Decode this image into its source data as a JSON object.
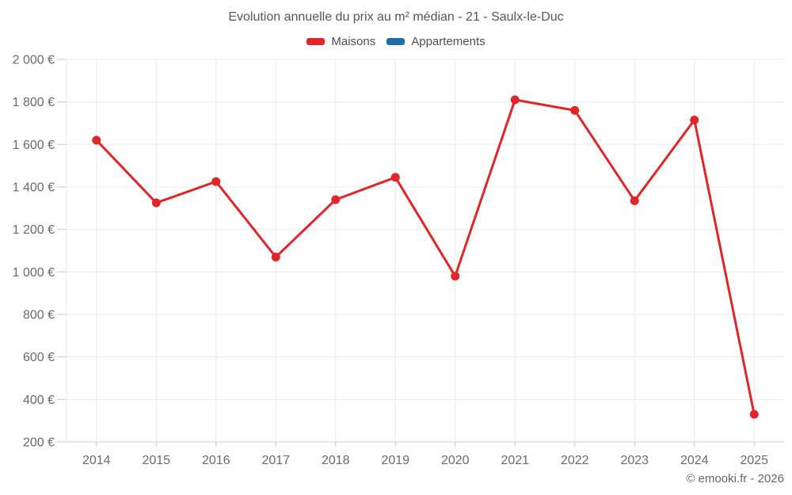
{
  "chart": {
    "title": "Evolution annuelle du prix au m² médian - 21 - Saulx-le-Duc"
  },
  "legend": {
    "items": [
      {
        "label": "Maisons",
        "color": "#e02628"
      },
      {
        "label": "Appartements",
        "color": "#1d6fa5"
      }
    ]
  },
  "footer": {
    "copyright": "© emooki.fr - 2026"
  },
  "colors": {
    "grid": "#ececec",
    "axis": "#cccccc",
    "axis_text": "#6b6b6b",
    "title_text": "#565656",
    "maisons": "#e02628",
    "appartements": "#1d6fa5"
  },
  "chart_data": {
    "type": "line",
    "title": "Evolution annuelle du prix au m² médian - 21 - Saulx-le-Duc",
    "xlabel": "",
    "ylabel": "",
    "categories": [
      "2014",
      "2015",
      "2016",
      "2017",
      "2018",
      "2019",
      "2020",
      "2021",
      "2022",
      "2023",
      "2024",
      "2025"
    ],
    "series": [
      {
        "name": "Maisons",
        "color": "#e02628",
        "values": [
          1620,
          1325,
          1425,
          1070,
          1340,
          1445,
          980,
          1810,
          1760,
          1335,
          1715,
          330
        ]
      },
      {
        "name": "Appartements",
        "color": "#1d6fa5",
        "values": []
      }
    ],
    "ylim": [
      200,
      2000
    ],
    "grid": true,
    "legend_position": "top",
    "y_ticks": [
      {
        "value": 200,
        "label": "200 €"
      },
      {
        "value": 400,
        "label": "400 €"
      },
      {
        "value": 600,
        "label": "600 €"
      },
      {
        "value": 800,
        "label": "800 €"
      },
      {
        "value": 1000,
        "label": "1 000 €"
      },
      {
        "value": 1200,
        "label": "1 200 €"
      },
      {
        "value": 1400,
        "label": "1 400 €"
      },
      {
        "value": 1600,
        "label": "1 600 €"
      },
      {
        "value": 1800,
        "label": "1 800 €"
      },
      {
        "value": 2000,
        "label": "2 000 €"
      }
    ]
  }
}
